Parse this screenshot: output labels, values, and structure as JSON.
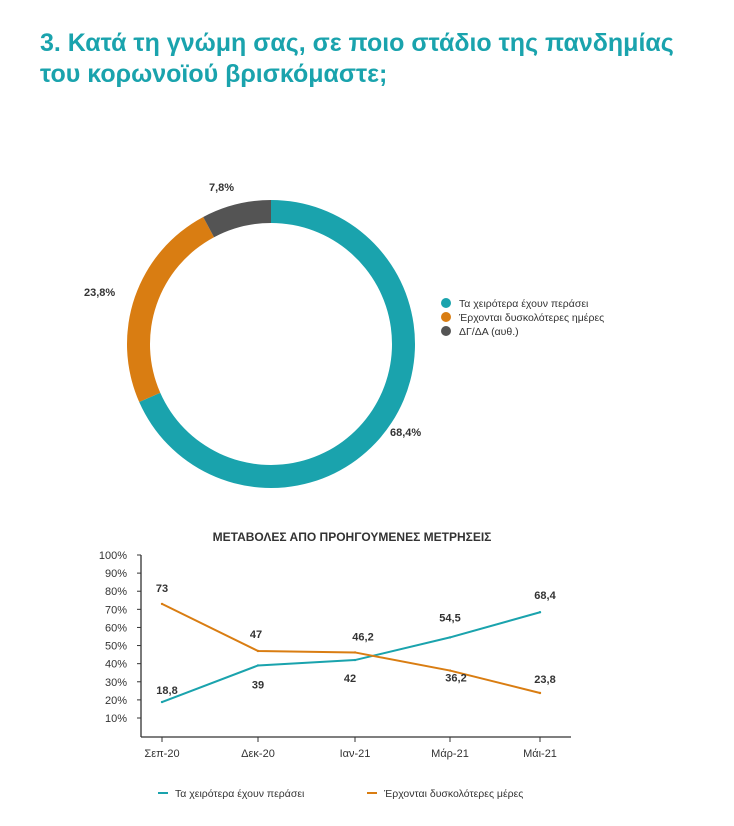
{
  "title": {
    "line1": "3. Κατά τη γνώμη σας, σε ποιο στάδιο της πανδημίας",
    "line2": "του κορωνοϊού βρισκόμαστε;"
  },
  "colors": {
    "teal": "#1aa3ad",
    "orange": "#d97d12",
    "gray": "#545454",
    "axis": "#333333"
  },
  "chart_data": [
    {
      "type": "pie",
      "variant": "donut",
      "categories": [
        "Τα χειρότερα έχουν περάσει",
        "Έρχονται δυσκολότερες ημέρες",
        "ΔΓ/ΔΑ (αυθ.)"
      ],
      "values": [
        68.4,
        23.8,
        7.8
      ],
      "data_labels": [
        "68,4%",
        "23,8%",
        "7,8%"
      ],
      "legend_placement": "right"
    },
    {
      "type": "line",
      "title": "ΜΕΤΑΒΟΛΕΣ ΑΠΟ ΠΡΟΗΓΟΥΜΕΝΕΣ ΜΕΤΡΗΣΕΙΣ",
      "categories": [
        "Σεπ-20",
        "Δεκ-20",
        "Ιαν-21",
        "Μάρ-21",
        "Μάι-21"
      ],
      "y_ticks": [
        "100%",
        "90%",
        "80%",
        "70%",
        "60%",
        "50%",
        "40%",
        "30%",
        "20%",
        "10%"
      ],
      "ylim": [
        10,
        100
      ],
      "series": [
        {
          "name": "Τα χειρότερα έχουν περάσει",
          "values": [
            18.8,
            39,
            42,
            54.5,
            68.4
          ],
          "labels": [
            "18,8",
            "39",
            "42",
            "54,5",
            "68,4"
          ]
        },
        {
          "name": "Έρχονται δυσκολότερες μέρες",
          "values": [
            73,
            47,
            46.2,
            36.2,
            23.8
          ],
          "labels": [
            "73",
            "47",
            "46,2",
            "36,2",
            "23,8"
          ]
        }
      ],
      "legend_placement": "bottom"
    }
  ]
}
